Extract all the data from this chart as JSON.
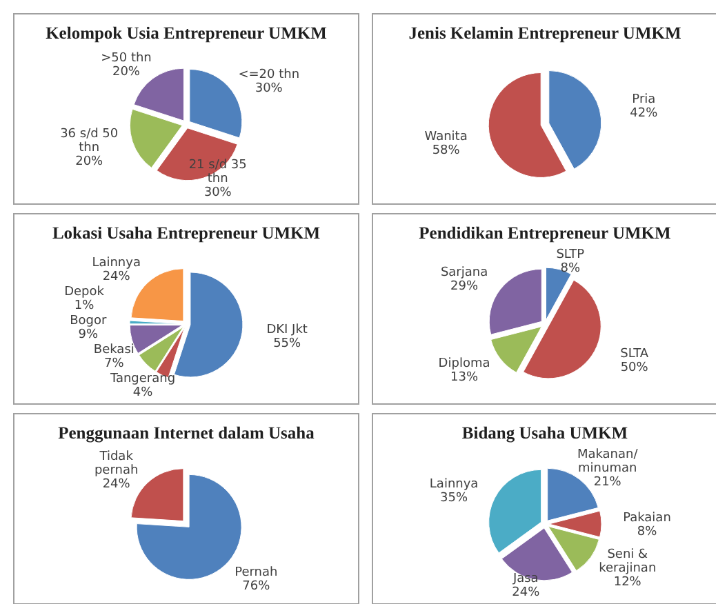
{
  "chart_data": [
    {
      "type": "pie",
      "title": "Kelompok Usia Entrepreneur UMKM",
      "categories": [
        "<=20 thn",
        "21 s/d 35 thn",
        "36 s/d 50 thn",
        ">50 thn"
      ],
      "values": [
        30,
        30,
        20,
        20
      ],
      "value_labels": [
        "30%",
        "30%",
        "20%",
        "20%"
      ],
      "colors": [
        "#4f81bd",
        "#c0504d",
        "#9bbb59",
        "#8064a2"
      ]
    },
    {
      "type": "pie",
      "title": "Jenis Kelamin Entrepreneur UMKM",
      "categories": [
        "Pria",
        "Wanita"
      ],
      "values": [
        42,
        58
      ],
      "value_labels": [
        "42%",
        "58%"
      ],
      "colors": [
        "#4f81bd",
        "#c0504d"
      ]
    },
    {
      "type": "pie",
      "title": "Lokasi Usaha Entrepreneur UMKM",
      "categories": [
        "DKI Jkt",
        "Tangerang",
        "Bekasi",
        "Bogor",
        "Depok",
        "Lainnya"
      ],
      "values": [
        55,
        4,
        7,
        9,
        1,
        24
      ],
      "value_labels": [
        "55%",
        "4%",
        "7%",
        "9%",
        "1%",
        "24%"
      ],
      "colors": [
        "#4f81bd",
        "#c0504d",
        "#9bbb59",
        "#8064a2",
        "#4bacc6",
        "#f79646"
      ]
    },
    {
      "type": "pie",
      "title": "Pendidikan Entrepreneur UMKM",
      "categories": [
        "SLTP",
        "SLTA",
        "Diploma",
        "Sarjana"
      ],
      "values": [
        8,
        50,
        13,
        29
      ],
      "value_labels": [
        "8%",
        "50%",
        "13%",
        "29%"
      ],
      "colors": [
        "#4f81bd",
        "#c0504d",
        "#9bbb59",
        "#8064a2"
      ]
    },
    {
      "type": "pie",
      "title": "Penggunaan Internet dalam Usaha",
      "categories": [
        "Pernah",
        "Tidak pernah"
      ],
      "values": [
        76,
        24
      ],
      "value_labels": [
        "76%",
        "24%"
      ],
      "colors": [
        "#4f81bd",
        "#c0504d"
      ]
    },
    {
      "type": "pie",
      "title": "Bidang Usaha UMKM",
      "categories": [
        "Makanan/ minuman",
        "Pakaian",
        "Seni & kerajinan",
        "Jasa",
        "Lainnya"
      ],
      "values": [
        21,
        8,
        12,
        24,
        35
      ],
      "value_labels": [
        "21%",
        "8%",
        "12%",
        "24%",
        "35%"
      ],
      "colors": [
        "#4f81bd",
        "#c0504d",
        "#9bbb59",
        "#8064a2",
        "#4bacc6"
      ]
    }
  ]
}
